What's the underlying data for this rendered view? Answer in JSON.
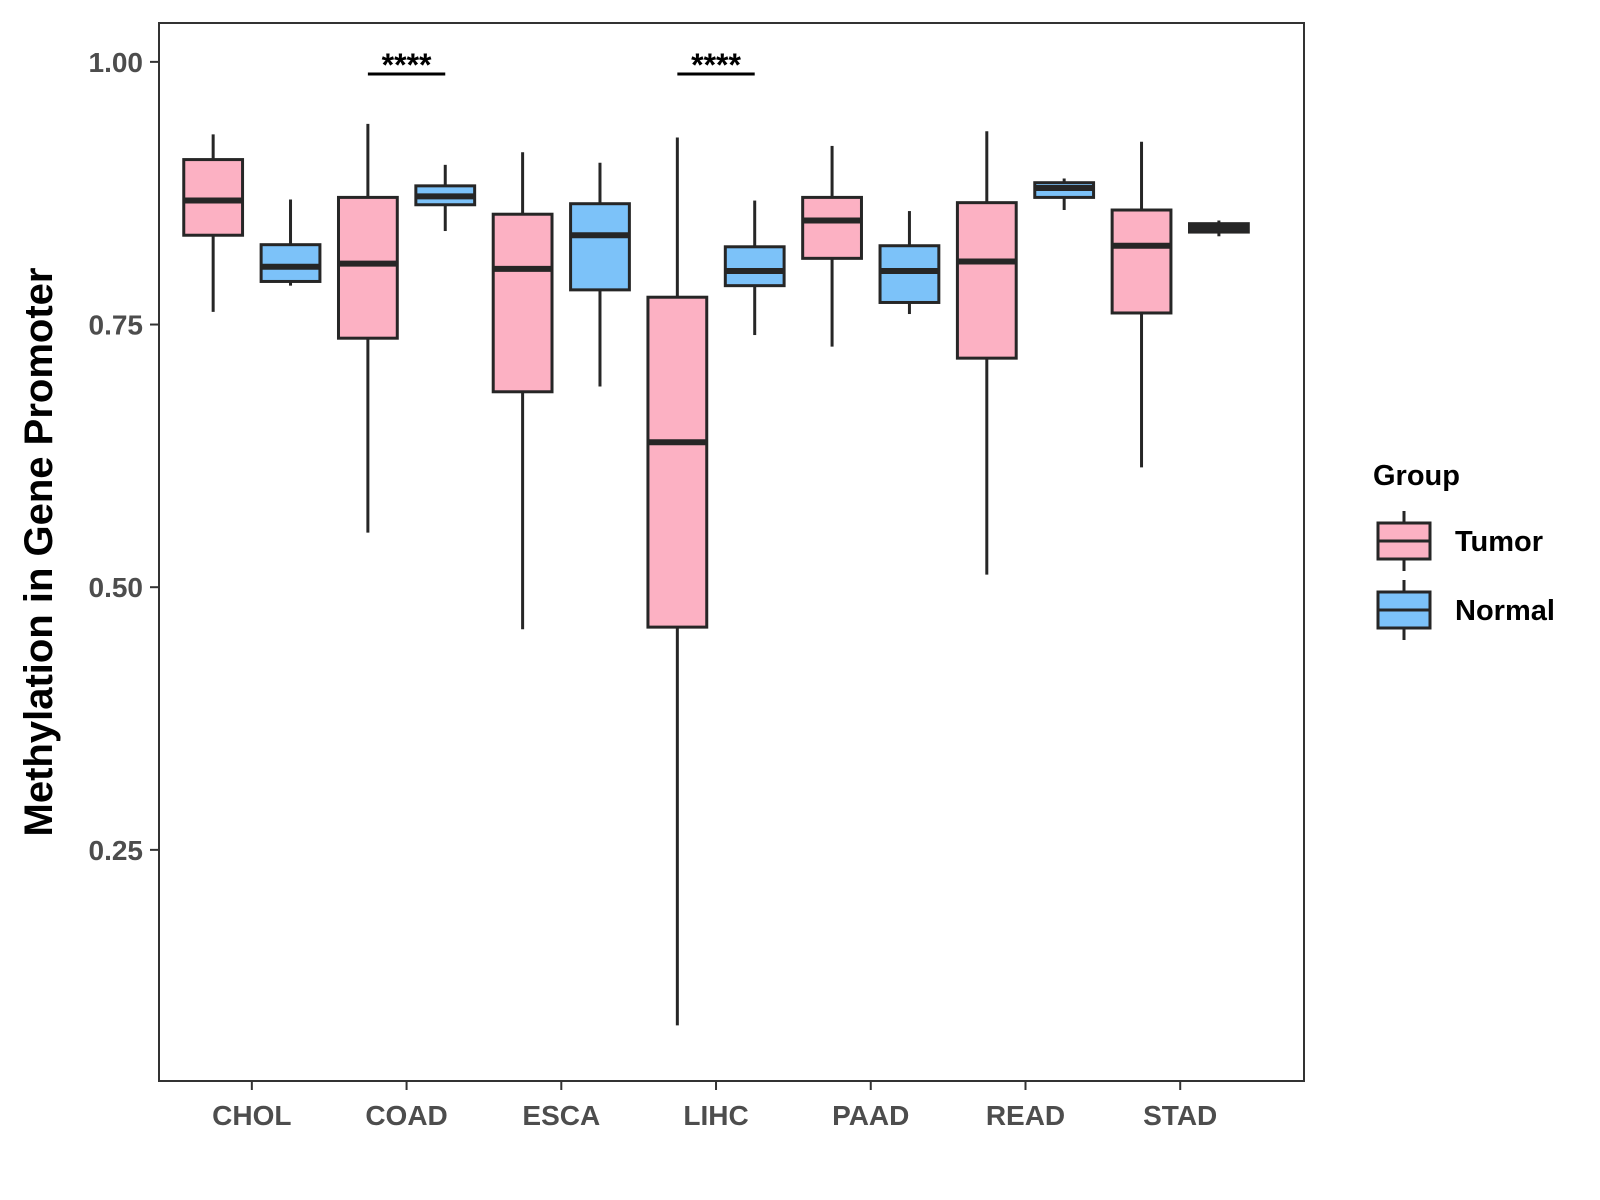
{
  "chart_data": {
    "type": "boxplot",
    "title": "",
    "xlabel": "",
    "ylabel": "Methylation in Gene Promoter",
    "ylim": [
      0.03,
      1.037
    ],
    "yticks": [
      0.25,
      0.5,
      0.75,
      1.0
    ],
    "ytick_labels": [
      "0.25",
      "0.50",
      "0.75",
      "1.00"
    ],
    "grid": false,
    "legend": {
      "title": "Group",
      "position": "right",
      "entries": [
        {
          "label": "Tumor",
          "color": "#fcb1c3"
        },
        {
          "label": "Normal",
          "color": "#7cc2f9"
        }
      ]
    },
    "categories": [
      "CHOL",
      "COAD",
      "ESCA",
      "LIHC",
      "PAAD",
      "READ",
      "STAD"
    ],
    "series": [
      {
        "name": "Tumor",
        "color": "#fcb1c3",
        "boxes": [
          {
            "whisker_low": 0.762,
            "q1": 0.835,
            "median": 0.868,
            "q3": 0.907,
            "whisker_high": 0.931
          },
          {
            "whisker_low": 0.552,
            "q1": 0.737,
            "median": 0.808,
            "q3": 0.871,
            "whisker_high": 0.941
          },
          {
            "whisker_low": 0.46,
            "q1": 0.686,
            "median": 0.803,
            "q3": 0.855,
            "whisker_high": 0.914
          },
          {
            "whisker_low": 0.083,
            "q1": 0.462,
            "median": 0.638,
            "q3": 0.776,
            "whisker_high": 0.928
          },
          {
            "whisker_low": 0.729,
            "q1": 0.813,
            "median": 0.849,
            "q3": 0.871,
            "whisker_high": 0.92
          },
          {
            "whisker_low": 0.512,
            "q1": 0.718,
            "median": 0.81,
            "q3": 0.866,
            "whisker_high": 0.934
          },
          {
            "whisker_low": 0.614,
            "q1": 0.761,
            "median": 0.825,
            "q3": 0.859,
            "whisker_high": 0.924
          }
        ]
      },
      {
        "name": "Normal",
        "color": "#7cc2f9",
        "boxes": [
          {
            "whisker_low": 0.787,
            "q1": 0.791,
            "median": 0.805,
            "q3": 0.826,
            "whisker_high": 0.869
          },
          {
            "whisker_low": 0.839,
            "q1": 0.864,
            "median": 0.872,
            "q3": 0.882,
            "whisker_high": 0.902
          },
          {
            "whisker_low": 0.691,
            "q1": 0.783,
            "median": 0.835,
            "q3": 0.865,
            "whisker_high": 0.904
          },
          {
            "whisker_low": 0.74,
            "q1": 0.787,
            "median": 0.801,
            "q3": 0.824,
            "whisker_high": 0.868
          },
          {
            "whisker_low": 0.76,
            "q1": 0.771,
            "median": 0.801,
            "q3": 0.825,
            "whisker_high": 0.858
          },
          {
            "whisker_low": 0.859,
            "q1": 0.871,
            "median": 0.88,
            "q3": 0.885,
            "whisker_high": 0.889
          },
          {
            "whisker_low": 0.834,
            "q1": 0.838,
            "median": 0.842,
            "q3": 0.846,
            "whisker_high": 0.849
          }
        ]
      }
    ],
    "annotations": [
      {
        "category": "COAD",
        "text": "****"
      },
      {
        "category": "LIHC",
        "text": "****"
      }
    ]
  }
}
